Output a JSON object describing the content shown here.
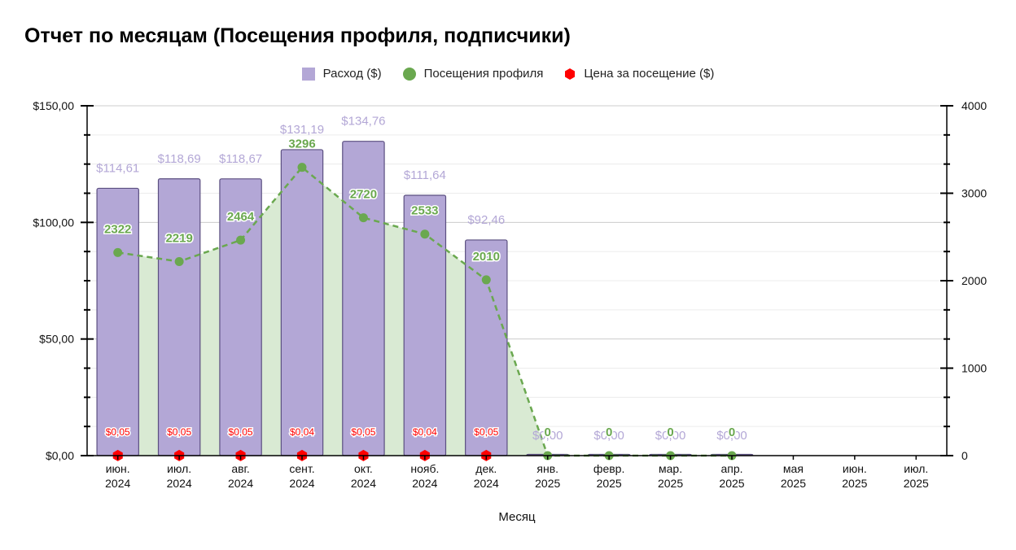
{
  "title": "Отчет по месяцам (Посещения профиля, подписчики)",
  "chart_data": {
    "type": "bar",
    "xlabel": "Месяц",
    "categories": [
      [
        "июн.",
        "2024"
      ],
      [
        "июл.",
        "2024"
      ],
      [
        "авг.",
        "2024"
      ],
      [
        "сент.",
        "2024"
      ],
      [
        "окт.",
        "2024"
      ],
      [
        "нояб.",
        "2024"
      ],
      [
        "дек.",
        "2024"
      ],
      [
        "янв.",
        "2025"
      ],
      [
        "февр.",
        "2025"
      ],
      [
        "мар.",
        "2025"
      ],
      [
        "апр.",
        "2025"
      ],
      [
        "мая",
        "2025"
      ],
      [
        "июн.",
        "2025"
      ],
      [
        "июл.",
        "2025"
      ]
    ],
    "y_left": {
      "min": 0,
      "max": 150,
      "ticks": [
        0,
        50,
        100,
        150
      ],
      "tick_labels": [
        "$0,00",
        "$50,00",
        "$100,00",
        "$150,00"
      ]
    },
    "y_right": {
      "min": 0,
      "max": 4000,
      "ticks": [
        0,
        1000,
        2000,
        3000,
        4000
      ],
      "tick_labels": [
        "0",
        "1000",
        "2000",
        "3000",
        "4000"
      ]
    },
    "legend_position": "top",
    "series": [
      {
        "name": "Расход ($)",
        "type": "bar",
        "axis": "left",
        "color": "#b3a7d6",
        "values": [
          114.61,
          118.69,
          118.67,
          131.19,
          134.76,
          111.64,
          92.46,
          0,
          0,
          0,
          0,
          null,
          null,
          null
        ],
        "labels": [
          "$114,61",
          "$118,69",
          "$118,67",
          "$131,19",
          "$134,76",
          "$111,64",
          "$92,46",
          "$0,00",
          "$0,00",
          "$0,00",
          "$0,00",
          "",
          "",
          ""
        ]
      },
      {
        "name": "Посещения профиля",
        "type": "line-area",
        "axis": "right",
        "color": "#6aa84f",
        "fill": "#d9ead3",
        "values": [
          2322,
          2219,
          2464,
          3296,
          2720,
          2533,
          2010,
          0,
          0,
          0,
          0,
          null,
          null,
          null
        ],
        "labels": [
          "2322",
          "2219",
          "2464",
          "3296",
          "2720",
          "2533",
          "2010",
          "0",
          "0",
          "0",
          "0",
          "",
          "",
          ""
        ]
      },
      {
        "name": "Цена за посещение ($)",
        "type": "marker",
        "axis": "left",
        "color": "#ff0000",
        "values": [
          0.05,
          0.05,
          0.05,
          0.04,
          0.05,
          0.04,
          0.05,
          null,
          null,
          null,
          null,
          null,
          null,
          null
        ],
        "labels": [
          "$0,05",
          "$0,05",
          "$0,05",
          "$0,04",
          "$0,05",
          "$0,04",
          "$0,05",
          "",
          "",
          "",
          "",
          "",
          "",
          ""
        ]
      }
    ]
  }
}
